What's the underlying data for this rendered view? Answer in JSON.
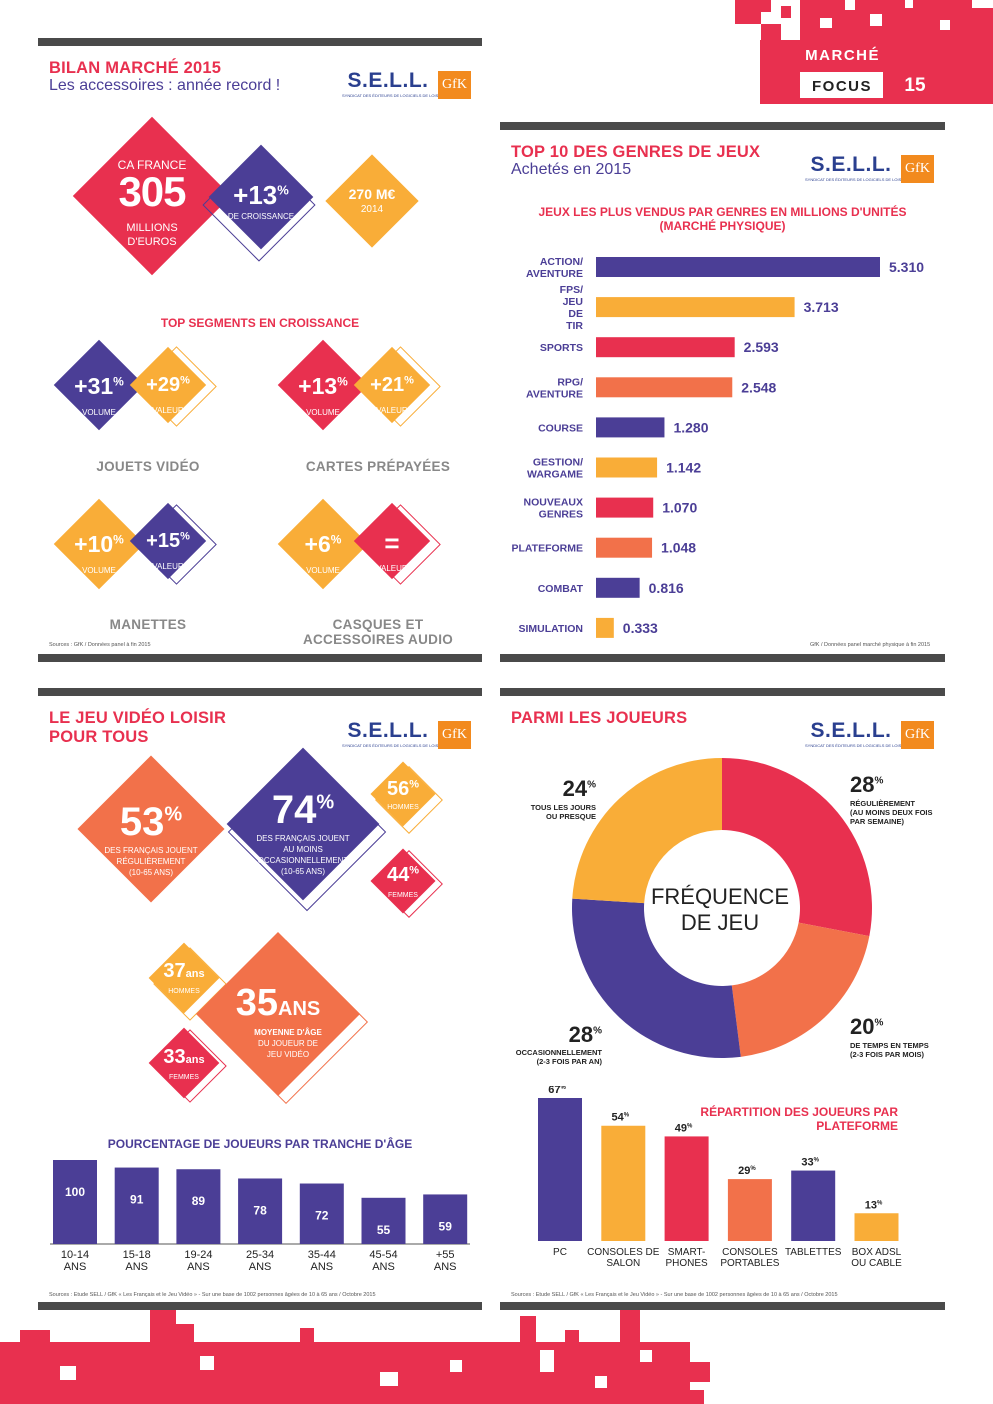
{
  "header": {
    "section": "MARCHÉ",
    "focus": "FOCUS",
    "page": "15"
  },
  "colors": {
    "red": "#e8304f",
    "purple": "#4b3e96",
    "orange": "#f2714a",
    "yellow": "#f9ad38",
    "dark": "#4a4a4a"
  },
  "logos": {
    "sell": "S.E.L.L.",
    "sell_sub": "SYNDICAT DES ÉDITEURS DE LOGICIELS DE LOISIRS",
    "gfk": "GfK"
  },
  "panel1": {
    "title": "BILAN MARCHÉ 2015",
    "subtitle": "Les accessoires : année record !",
    "ca_label": "CA FRANCE",
    "ca_value": "305",
    "ca_unit1": "MILLIONS",
    "ca_unit2": "D'EUROS",
    "growth_value": "+13",
    "growth_pct": "%",
    "growth_label": "DE CROISSANCE",
    "prev_value": "270 M€",
    "prev_year": "2014",
    "top_title": "TOP SEGMENTS EN CROISSANCE",
    "segments": [
      {
        "name": "JOUETS VIDÉO",
        "vol": "+31",
        "val": "+29"
      },
      {
        "name": "CARTES PRÉPAYÉES",
        "vol": "+13",
        "val": "+21"
      },
      {
        "name": "MANETTES",
        "vol": "+10",
        "val": "+15"
      },
      {
        "name1": "CASQUES ET",
        "name2": "ACCESSOIRES AUDIO",
        "vol": "+6",
        "val": "="
      }
    ],
    "pct": "%",
    "vol_label": "VOLUME",
    "val_label": "VALEUR",
    "source": "Sources : GfK / Données panel à fin 2015"
  },
  "panel2": {
    "title": "TOP 10 DES GENRES DE JEUX",
    "subtitle": "Achetés en 2015",
    "source": "GfK / Données panel marché physique à fin 2015"
  },
  "panel3": {
    "title1": "LE JEU VIDÉO LOISIR",
    "title2": "POUR TOUS",
    "stat53": "53",
    "stat53_l1": "DES FRANÇAIS JOUENT",
    "stat53_l2": "RÉGULIÈREMENT",
    "stat53_l3": "(10-65 ANS)",
    "stat74": "74",
    "stat74_l1": "DES FRANÇAIS JOUENT",
    "stat74_l2": "AU MOINS",
    "stat74_l3": "OCCASIONNELLEMENT",
    "stat74_l4": "(10-65 ANS)",
    "men": "56",
    "men_label": "HOMMES",
    "women": "44",
    "women_label": "FEMMES",
    "age_men": "37",
    "ans": "ans",
    "age_avg": "35",
    "ans_caps": "ANS",
    "age_avg_l1": "MOYENNE D'ÂGE",
    "age_avg_l2": "DU JOUEUR DE",
    "age_avg_l3": "JEU VIDÉO",
    "age_women": "33",
    "pct": "%",
    "source": "Sources : Etude SELL / GfK « Les Français et le Jeu Vidéo » - Sur une base de 1002 personnes âgées de 10 à 65 ans / Octobre 2015"
  },
  "panel4": {
    "title": "PARMI LES JOUEURS",
    "donut_center1": "FRÉQUENCE",
    "donut_center2": "DE JEU",
    "pct": "%",
    "labels": {
      "l24": [
        "TOUS LES JOURS",
        "OU PRESQUE"
      ],
      "l28a": [
        "RÉGULIÈREMENT",
        "(AU MOINS DEUX FOIS",
        "PAR SEMAINE)"
      ],
      "l20": [
        "DE TEMPS EN TEMPS",
        "(2-3 FOIS PAR MOIS)"
      ],
      "l28b": [
        "OCCASIONNELLEMENT",
        "(2-3 FOIS PAR AN)"
      ]
    },
    "source": "Sources : Etude SELL / GfK « Les Français et le Jeu Vidéo » - Sur une base de 1002 personnes âgées de 10 à 65 ans / Octobre 2015"
  },
  "chart_data": [
    {
      "type": "bar",
      "orientation": "horizontal",
      "title": "JEUX LES PLUS VENDUS PAR GENRES EN MILLIONS D'UNITÉS",
      "subtitle": "(MARCHÉ PHYSIQUE)",
      "categories": [
        "ACTION/ AVENTURE",
        "FPS/ JEU DE TIR",
        "SPORTS",
        "RPG/ AVENTURE",
        "COURSE",
        "GESTION/ WARGAME",
        "NOUVEAUX GENRES",
        "PLATEFORME",
        "COMBAT",
        "SIMULATION"
      ],
      "values": [
        5.31,
        3.713,
        2.593,
        2.548,
        1.28,
        1.142,
        1.07,
        1.048,
        0.816,
        0.333
      ],
      "value_labels": [
        "5.310",
        "3.713",
        "2.593",
        "2.548",
        "1.280",
        "1.142",
        "1.070",
        "1.048",
        "0.816",
        "0.333"
      ],
      "colors": [
        "#4b3e96",
        "#f9ad38",
        "#e8304f",
        "#f2714a",
        "#4b3e96",
        "#f9ad38",
        "#e8304f",
        "#f2714a",
        "#4b3e96",
        "#f9ad38"
      ],
      "xlim": [
        0,
        5.31
      ]
    },
    {
      "type": "bar",
      "title": "POURCENTAGE DE JOUEURS PAR TRANCHE D'ÂGE",
      "categories": [
        "10-14 ANS",
        "15-18 ANS",
        "19-24 ANS",
        "25-34 ANS",
        "35-44 ANS",
        "45-54 ANS",
        "+55 ANS"
      ],
      "values": [
        100,
        91,
        89,
        78,
        72,
        55,
        59
      ],
      "color": "#4b3e96",
      "ylim": [
        0,
        100
      ]
    },
    {
      "type": "pie",
      "title": "FRÉQUENCE DE JEU",
      "categories": [
        "RÉGULIÈREMENT",
        "DE TEMPS EN TEMPS",
        "OCCASIONNELLEMENT",
        "TOUS LES JOURS OU PRESQUE"
      ],
      "values": [
        28,
        20,
        28,
        24
      ],
      "colors": [
        "#e8304f",
        "#f2714a",
        "#4b3e96",
        "#f9ad38"
      ]
    },
    {
      "type": "bar",
      "title": "RÉPARTITION DES JOUEURS PAR PLATEFORME",
      "categories": [
        "PC",
        "CONSOLES DE SALON",
        "SMART- PHONES",
        "CONSOLES PORTABLES",
        "TABLETTES",
        "BOX ADSL OU CABLE"
      ],
      "values": [
        67,
        54,
        49,
        29,
        33,
        13
      ],
      "colors": [
        "#4b3e96",
        "#f9ad38",
        "#e8304f",
        "#f2714a",
        "#4b3e96",
        "#f9ad38"
      ],
      "ylim": [
        0,
        67
      ]
    }
  ]
}
